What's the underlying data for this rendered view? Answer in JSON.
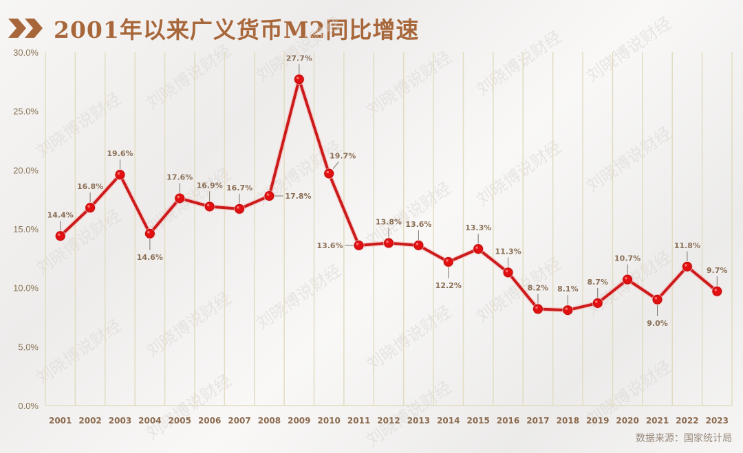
{
  "title": "2001年以来广义货币M2同比增速",
  "title_icon": "double-chevron-right-icon",
  "source": "数据来源：国家统计局",
  "watermark": "刘晓博说财经",
  "colors": {
    "accent": "#a8673a",
    "line": "#cc1a1a",
    "marker": "#e21010",
    "grid": "#e2dcc0",
    "label": "#8a6f55"
  },
  "chart_data": {
    "type": "line",
    "title": "2001年以来广义货币M2同比增速",
    "xlabel": "",
    "ylabel": "",
    "categories": [
      "2001",
      "2002",
      "2003",
      "2004",
      "2005",
      "2006",
      "2007",
      "2008",
      "2009",
      "2010",
      "2011",
      "2012",
      "2013",
      "2014",
      "2015",
      "2016",
      "2017",
      "2018",
      "2019",
      "2020",
      "2021",
      "2022",
      "2023"
    ],
    "series": [
      {
        "name": "M2同比增速",
        "values": [
          14.4,
          16.8,
          19.6,
          14.6,
          17.6,
          16.9,
          16.7,
          17.8,
          27.7,
          19.7,
          13.6,
          13.8,
          13.6,
          12.2,
          13.3,
          11.3,
          8.2,
          8.1,
          8.7,
          10.7,
          9.0,
          11.8,
          9.7
        ]
      }
    ],
    "data_labels": [
      "14.4%",
      "16.8%",
      "19.6%",
      "14.6%",
      "17.6%",
      "16.9%",
      "16.7%",
      "17.8%",
      "27.7%",
      "19.7%",
      "13.6%",
      "13.8%",
      "13.6%",
      "12.2%",
      "13.3%",
      "11.3%",
      "8.2%",
      "8.1%",
      "8.7%",
      "10.7%",
      "9.0%",
      "11.8%",
      "9.7%"
    ],
    "label_positions": [
      "above",
      "above",
      "above",
      "below",
      "above",
      "above",
      "above",
      "right",
      "above",
      "above-right",
      "left",
      "above",
      "above",
      "below",
      "above",
      "above",
      "above",
      "above",
      "above",
      "above",
      "below",
      "above",
      "above"
    ],
    "yticks": [
      "0.0%",
      "5.0%",
      "10.0%",
      "15.0%",
      "20.0%",
      "25.0%",
      "30.0%"
    ],
    "ylim": [
      0,
      30
    ],
    "grid": {
      "vertical": true,
      "horizontal": false
    },
    "legend": null,
    "source": "数据来源：国家统计局"
  }
}
